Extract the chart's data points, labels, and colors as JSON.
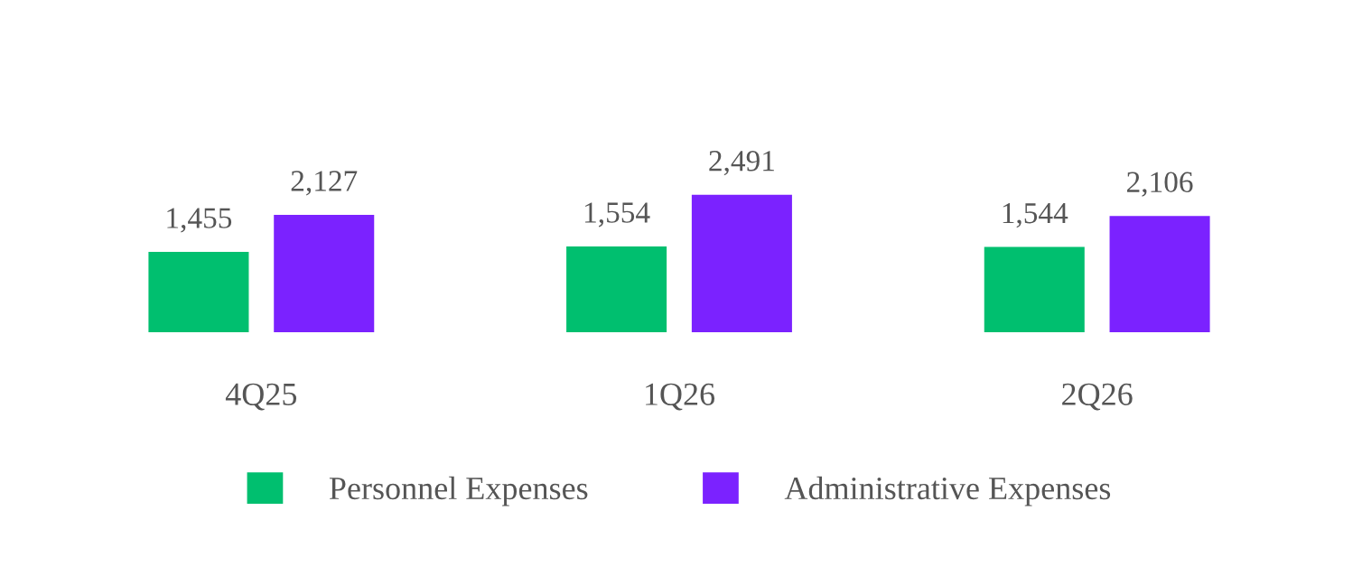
{
  "chart_data": {
    "type": "bar",
    "categories": [
      "4Q25",
      "1Q26",
      "2Q26"
    ],
    "series": [
      {
        "name": "Personnel Expenses",
        "color": "#00bf6f",
        "values": [
          1455,
          1554,
          1544
        ],
        "value_labels": [
          "1,455",
          "1,554",
          "1,544"
        ]
      },
      {
        "name": "Administrative Expenses",
        "color": "#7b22ff",
        "values": [
          2127,
          2491,
          2106
        ],
        "value_labels": [
          "2,127",
          "2,491",
          "2,106"
        ]
      }
    ],
    "legend": "bottom",
    "grid": false
  }
}
